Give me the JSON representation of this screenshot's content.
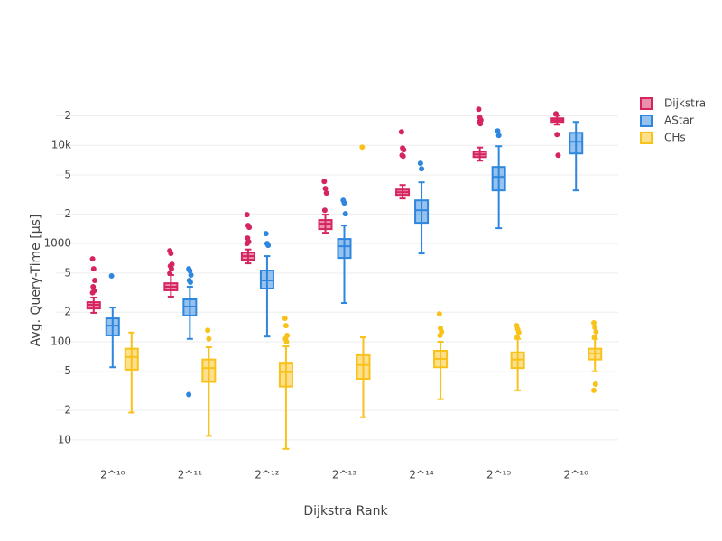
{
  "chart_data": {
    "type": "box",
    "y_label": "Avg. Query-Time [µs]",
    "x_label": "Dijkstra Rank",
    "log_y": true,
    "grid": true,
    "legend_position": "right",
    "categories": [
      "2^¹⁰",
      "2^¹¹",
      "2^¹²",
      "2^¹³",
      "2^¹⁴",
      "2^¹⁵",
      "2^¹⁶"
    ],
    "ylim": [
      6,
      35000
    ],
    "yticks": [
      10,
      {
        "value": 20,
        "label": "2"
      },
      {
        "value": 50,
        "label": "5"
      },
      100,
      {
        "value": 200,
        "label": "2"
      },
      {
        "value": 500,
        "label": "5"
      },
      1000,
      {
        "value": 2000,
        "label": "2"
      },
      {
        "value": 5000,
        "label": "5"
      },
      {
        "value": 10000,
        "label": "10k"
      },
      {
        "value": 20000,
        "label": "2"
      }
    ],
    "series": [
      {
        "name": "Dijkstra",
        "color": "#d6245e",
        "boxes": [
          {
            "low": 197,
            "q1": 218,
            "median": 238,
            "q3": 253,
            "high": 282,
            "outliers": [
              698,
              553,
              421,
              363,
              331,
              316
            ]
          },
          {
            "low": 288,
            "q1": 334,
            "median": 363,
            "q3": 394,
            "high": 478,
            "outliers": [
              845,
              793,
              615,
              590,
              553,
              498
            ]
          },
          {
            "low": 628,
            "q1": 684,
            "median": 744,
            "q3": 809,
            "high": 870,
            "outliers": [
              1968,
              1525,
              1462,
              1135,
              1043,
              1000
            ]
          },
          {
            "low": 1288,
            "q1": 1403,
            "median": 1592,
            "q3": 1734,
            "high": 1968,
            "outliers": [
              4295,
              3631,
              3266,
              2183
            ]
          },
          {
            "low": 2877,
            "q1": 3128,
            "median": 3334,
            "q3": 3548,
            "high": 3945,
            "outliers": [
              13740,
              9380,
              8993,
              7925,
              7762
            ]
          },
          {
            "low": 6980,
            "q1": 7596,
            "median": 8094,
            "q3": 8630,
            "high": 9500,
            "outliers": [
              23270,
              19230,
              18070,
              17330,
              16600
            ]
          },
          {
            "low": 16260,
            "q1": 17330,
            "median": 18070,
            "q3": 18850,
            "high": 20100,
            "outliers": [
              20940,
              12890,
              7925
            ]
          }
        ]
      },
      {
        "name": "AStar",
        "color": "#2e86de",
        "boxes": [
          {
            "low": 55,
            "q1": 116,
            "median": 146,
            "q3": 173,
            "high": 223,
            "outliers": [
              468
            ]
          },
          {
            "low": 107,
            "q1": 185,
            "median": 228,
            "q3": 270,
            "high": 363,
            "outliers": [
              553,
              527,
              478,
              421,
              404,
              29
            ]
          },
          {
            "low": 113,
            "q1": 348,
            "median": 421,
            "q3": 531,
            "high": 744,
            "outliers": [
              1262,
              1000,
              959
            ]
          },
          {
            "low": 248,
            "q1": 713,
            "median": 938,
            "q3": 1112,
            "high": 1525,
            "outliers": [
              2754,
              2588,
              2009
            ]
          },
          {
            "low": 793,
            "q1": 1626,
            "median": 2183,
            "q3": 2754,
            "high": 4205,
            "outliers": [
              6561,
              5772
            ]
          },
          {
            "low": 1432,
            "q1": 3478,
            "median": 4774,
            "q3": 6026,
            "high": 9790,
            "outliers": [
              14030,
              12620
            ]
          },
          {
            "low": 3478,
            "q1": 8264,
            "median": 10880,
            "q3": 13430,
            "high": 17330,
            "outliers": []
          }
        ]
      },
      {
        "name": "CHs",
        "color": "#f9c21b",
        "boxes": [
          {
            "low": 19,
            "q1": 52,
            "median": 70,
            "q3": 85,
            "high": 124,
            "outliers": []
          },
          {
            "low": 11,
            "q1": 39,
            "median": 54,
            "q3": 66,
            "high": 88,
            "outliers": [
              131,
              107
            ]
          },
          {
            "low": 8.1,
            "q1": 35,
            "median": 49,
            "q3": 60,
            "high": 90,
            "outliers": [
              173,
              146,
              116,
              107,
              100
            ]
          },
          {
            "low": 17,
            "q1": 42,
            "median": 58,
            "q3": 73,
            "high": 111,
            "outliers": [
              9594
            ]
          },
          {
            "low": 26,
            "q1": 55,
            "median": 67,
            "q3": 81,
            "high": 100,
            "outliers": [
              192,
              137,
              126,
              116
            ]
          },
          {
            "low": 32,
            "q1": 54,
            "median": 66,
            "q3": 78,
            "high": 107,
            "outliers": [
              146,
              134,
              124,
              111
            ]
          },
          {
            "low": 50,
            "q1": 66,
            "median": 76,
            "q3": 85,
            "high": 107,
            "outliers": [
              156,
              140,
              126,
              111,
              37,
              32
            ]
          }
        ]
      }
    ]
  }
}
